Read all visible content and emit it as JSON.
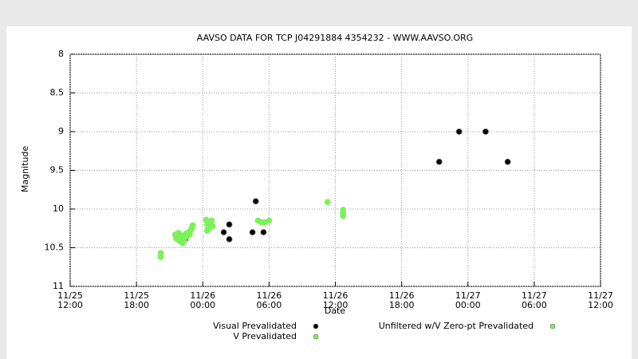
{
  "chart_data": {
    "type": "scatter",
    "title": "AAVSO DATA FOR TCP J04291884 4354232 - WWW.AAVSO.ORG",
    "x_label": "Date",
    "y_label": "Magnitude",
    "xlim": [
      12,
      60
    ],
    "ylim": [
      11,
      8
    ],
    "inverted_y": true,
    "grid": true,
    "xticks": [
      {
        "value": 12,
        "label": "11/25 12:00"
      },
      {
        "value": 18,
        "label": "11/25 18:00"
      },
      {
        "value": 24,
        "label": "11/26 00:00"
      },
      {
        "value": 30,
        "label": "11/26 06:00"
      },
      {
        "value": 36,
        "label": "11/26 12:00"
      },
      {
        "value": 42,
        "label": "11/26 18:00"
      },
      {
        "value": 48,
        "label": "11/27 00:00"
      },
      {
        "value": 54,
        "label": "11/27 06:00"
      },
      {
        "value": 60,
        "label": "11/27 12:00"
      }
    ],
    "yticks": [
      8,
      8.5,
      9,
      9.5,
      10,
      10.5,
      11
    ],
    "series": [
      {
        "name": "Visual Prevalidated",
        "color": "#000000",
        "x": [
          22.4,
          25.9,
          26.4,
          26.4,
          28.5,
          28.8,
          29.5,
          45.4,
          47.2,
          49.6,
          51.6
        ],
        "values": [
          10.39,
          10.3,
          10.2,
          10.39,
          10.3,
          9.9,
          10.3,
          9.39,
          9.0,
          9.0,
          9.39
        ]
      },
      {
        "name": "V Prevalidated",
        "color": "#7cf25a",
        "x": [
          20.2,
          20.2,
          21.5,
          21.6,
          21.7,
          21.8,
          21.9,
          22.0,
          22.1,
          22.2,
          22.3,
          22.4,
          22.5,
          22.6,
          22.7,
          22.8,
          22.9,
          23.0,
          23.1,
          22.2,
          21.8,
          24.3,
          24.4,
          24.5,
          24.6,
          24.8,
          24.9,
          24.4,
          35.3,
          36.7,
          36.7,
          36.7
        ],
        "values": [
          10.57,
          10.62,
          10.33,
          10.38,
          10.35,
          10.4,
          10.36,
          10.42,
          10.37,
          10.34,
          10.4,
          10.36,
          10.32,
          10.35,
          10.3,
          10.33,
          10.28,
          10.25,
          10.21,
          10.44,
          10.31,
          10.14,
          10.2,
          10.26,
          10.17,
          10.15,
          10.22,
          10.28,
          9.91,
          10.01,
          10.05,
          10.09
        ]
      },
      {
        "name": "Unfiltered w/V Zero-pt Prevalidated",
        "color": "#7cf25a",
        "x": [
          29.0,
          29.3,
          29.6,
          30.0
        ],
        "values": [
          10.15,
          10.17,
          10.17,
          10.15
        ]
      }
    ]
  }
}
